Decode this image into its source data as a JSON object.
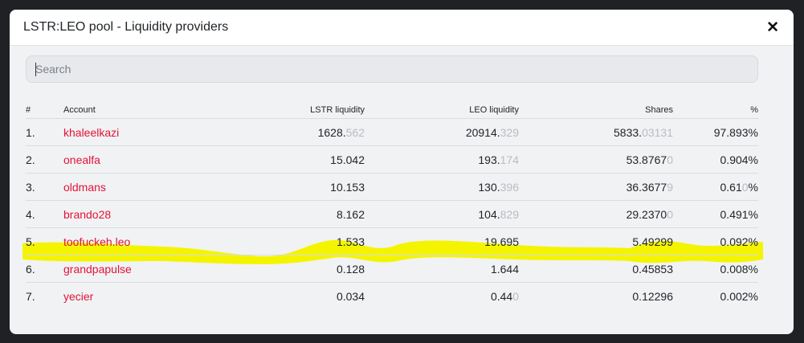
{
  "modal": {
    "title": "LSTR:LEO pool - Liquidity providers",
    "close_label": "✕"
  },
  "search": {
    "placeholder": "Search",
    "value": ""
  },
  "table": {
    "headers": {
      "num": "#",
      "account": "Account",
      "lstr": "LSTR liquidity",
      "leo": "LEO liquidity",
      "shares": "Shares",
      "pct": "%"
    },
    "rows": [
      {
        "num": "1.",
        "account": "khaleelkazi",
        "lstr_main": "1628.",
        "lstr_dim": "562",
        "leo_main": "20914.",
        "leo_dim": "329",
        "shares_main": "5833.",
        "shares_dim": "03131",
        "pct_main": "97.893%",
        "pct_dim": ""
      },
      {
        "num": "2.",
        "account": "onealfa",
        "lstr_main": "15.042",
        "lstr_dim": "",
        "leo_main": "193.",
        "leo_dim": "174",
        "shares_main": "53.8767",
        "shares_dim": "0",
        "pct_main": "0.904%",
        "pct_dim": ""
      },
      {
        "num": "3.",
        "account": "oldmans",
        "lstr_main": "10.153",
        "lstr_dim": "",
        "leo_main": "130.",
        "leo_dim": "396",
        "shares_main": "36.3677",
        "shares_dim": "9",
        "pct_main": "0.61",
        "pct_dim": "0",
        "pct_tail": "%"
      },
      {
        "num": "4.",
        "account": "brando28",
        "lstr_main": "8.162",
        "lstr_dim": "",
        "leo_main": "104.",
        "leo_dim": "829",
        "shares_main": "29.2370",
        "shares_dim": "0",
        "pct_main": "0.491%",
        "pct_dim": ""
      },
      {
        "num": "5.",
        "account": "toofuckeh.leo",
        "lstr_main": "1.533",
        "lstr_dim": "",
        "leo_main": "19.695",
        "leo_dim": "",
        "shares_main": "5.49299",
        "shares_dim": "",
        "pct_main": "0.092%",
        "pct_dim": ""
      },
      {
        "num": "6.",
        "account": "grandpapulse",
        "lstr_main": "0.128",
        "lstr_dim": "",
        "leo_main": "1.644",
        "leo_dim": "",
        "shares_main": "0.45853",
        "shares_dim": "",
        "pct_main": "0.008%",
        "pct_dim": ""
      },
      {
        "num": "7.",
        "account": "yecier",
        "lstr_main": "0.034",
        "lstr_dim": "",
        "leo_main": "0.44",
        "leo_dim": "0",
        "shares_main": "0.12296",
        "shares_dim": "",
        "pct_main": "0.002%",
        "pct_dim": ""
      }
    ],
    "highlighted_row": 4
  },
  "colors": {
    "account_link": "#e31337",
    "highlight": "#f4f400",
    "dim_digits": "#b8bcc2"
  }
}
